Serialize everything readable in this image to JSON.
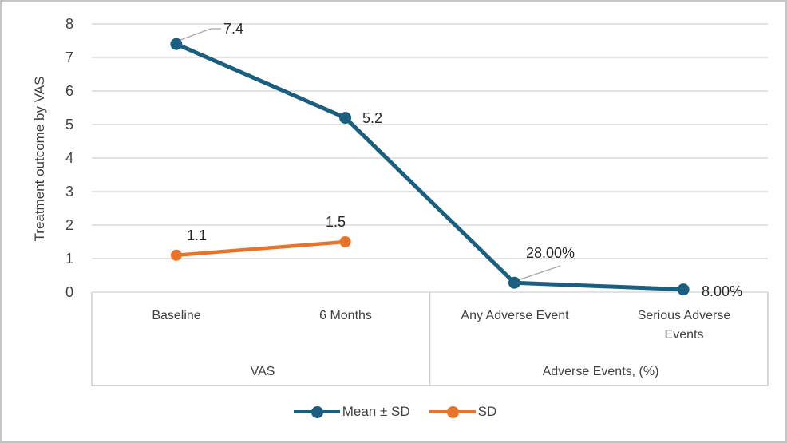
{
  "chart_data": {
    "type": "line",
    "title": "",
    "xlabel": "",
    "ylabel": "Treatment outcome by VAS",
    "ylim": [
      0,
      8
    ],
    "yticks": [
      0,
      1,
      2,
      3,
      4,
      5,
      6,
      7,
      8
    ],
    "grid": true,
    "legend_position": "bottom",
    "categories": [
      "Baseline",
      "6 Months",
      "Any Adverse Event",
      "Serious Adverse Events"
    ],
    "category_groups": [
      {
        "label": "VAS",
        "span": [
          0,
          1
        ]
      },
      {
        "label": "Adverse Events, (%)",
        "span": [
          2,
          3
        ]
      }
    ],
    "series": [
      {
        "name": "Mean ± SD",
        "color": "#1a5f80",
        "values": [
          7.4,
          5.2,
          0.28,
          0.08
        ],
        "point_labels": [
          "7.4",
          "5.2",
          "28.00%",
          "8.00%"
        ]
      },
      {
        "name": "SD",
        "color": "#e87429",
        "values": [
          1.1,
          1.5,
          null,
          null
        ],
        "point_labels": [
          "1.1",
          "1.5",
          null,
          null
        ]
      }
    ]
  },
  "colors": {
    "series_mean_sd": "#1a5f80",
    "series_sd": "#e87429",
    "gridline": "#d9d9d9",
    "axis_box": "#c9c9c9",
    "leader_line": "#a6a6a6",
    "text": "#404040",
    "data_label_text": "#262626",
    "frame_border": "#c6c6c6"
  }
}
